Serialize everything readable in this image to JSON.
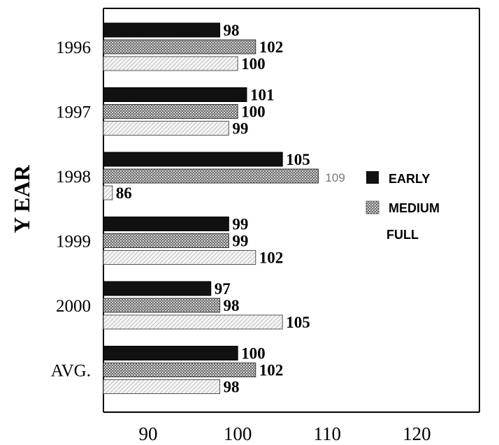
{
  "chart_data": {
    "type": "bar",
    "orientation": "horizontal",
    "ylabel": "Y EAR",
    "xlabel": "",
    "categories": [
      "1996",
      "1997",
      "1998",
      "1999",
      "2000",
      "AVG."
    ],
    "xlim": [
      85,
      127
    ],
    "xticks": [
      90,
      100,
      110,
      120
    ],
    "grid": false,
    "legend_position": "right",
    "series": [
      {
        "name": "EARLY",
        "values": [
          98,
          101,
          105,
          99,
          97,
          100
        ],
        "color": "#111111"
      },
      {
        "name": "MEDIUM",
        "values": [
          102,
          100,
          109,
          99,
          98,
          102
        ],
        "color": "#8a8a8a"
      },
      {
        "name": "FULL",
        "values": [
          100,
          99,
          86,
          102,
          105,
          98
        ],
        "color": "#ececec"
      }
    ]
  }
}
